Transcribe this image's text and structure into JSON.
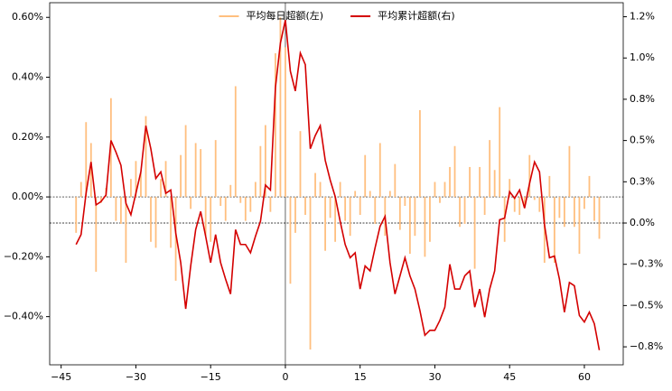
{
  "chart_data": {
    "type": "bar",
    "legend": "upper center",
    "xlim": [
      -47.3,
      67.8
    ],
    "ylim": [
      -0.561,
      0.649
    ],
    "y2lim": [
      -0.859,
      1.335
    ],
    "xticks": [
      {
        "value": -45,
        "label": "−45"
      },
      {
        "value": -30,
        "label": "−30"
      },
      {
        "value": -15,
        "label": "−15"
      },
      0,
      15,
      30,
      45,
      60
    ],
    "yticks": [
      {
        "value": -0.4,
        "label": "−0.40%"
      },
      {
        "value": -0.2,
        "label": "−0.20%"
      },
      {
        "value": 0,
        "label": "0.00%"
      },
      {
        "value": 0.2,
        "label": "0.20%"
      },
      {
        "value": 0.4,
        "label": "0.40%"
      },
      {
        "value": 0.6,
        "label": "0.60%"
      }
    ],
    "y2ticks": [
      {
        "value": -0.75,
        "label": "−0.8%"
      },
      {
        "value": -0.5,
        "label": "−0.5%"
      },
      {
        "value": -0.25,
        "label": "−0.3%"
      },
      {
        "value": 0,
        "label": "0.0%"
      },
      {
        "value": 0.25,
        "label": "0.3%"
      },
      {
        "value": 0.5,
        "label": "0.5%"
      },
      {
        "value": 0.75,
        "label": "0.8%"
      },
      {
        "value": 1.0,
        "label": "1.0%"
      },
      {
        "value": 1.25,
        "label": "1.2%"
      }
    ],
    "x": [
      -42,
      -41,
      -40,
      -39,
      -38,
      -37,
      -36,
      -35,
      -34,
      -33,
      -32,
      -31,
      -30,
      -29,
      -28,
      -27,
      -26,
      -25,
      -24,
      -23,
      -22,
      -21,
      -20,
      -19,
      -18,
      -17,
      -16,
      -15,
      -14,
      -13,
      -12,
      -11,
      -10,
      -9,
      -8,
      -7,
      -6,
      -5,
      -4,
      -3,
      -2,
      -1,
      0,
      1,
      2,
      3,
      4,
      5,
      6,
      7,
      8,
      9,
      10,
      11,
      12,
      13,
      14,
      15,
      16,
      17,
      18,
      19,
      20,
      21,
      22,
      23,
      24,
      25,
      26,
      27,
      28,
      29,
      30,
      31,
      32,
      33,
      34,
      35,
      36,
      37,
      38,
      39,
      40,
      41,
      42,
      43,
      44,
      45,
      46,
      47,
      48,
      49,
      50,
      51,
      52,
      53,
      54,
      55,
      56,
      57,
      58,
      59,
      60,
      61,
      62,
      63
    ],
    "series": [
      {
        "name": "平均每日超额(左)",
        "type": "bar",
        "color": "#ffbf7f",
        "values": [
          -0.12,
          0.05,
          0.25,
          0.18,
          -0.25,
          -0.02,
          0.03,
          0.33,
          -0.08,
          -0.09,
          -0.22,
          0.06,
          0.12,
          0.08,
          0.27,
          -0.15,
          -0.17,
          0.06,
          0.12,
          -0.17,
          -0.28,
          0.14,
          0.24,
          -0.04,
          0.18,
          0.16,
          -0.13,
          -0.15,
          0.19,
          -0.03,
          -0.08,
          0.04,
          0.37,
          -0.02,
          -0.08,
          -0.05,
          0.05,
          0.17,
          0.24,
          -0.05,
          0.48,
          0.6,
          0.5,
          -0.29,
          -0.12,
          0.22,
          -0.06,
          -0.51,
          0.08,
          0.05,
          -0.18,
          -0.07,
          -0.15,
          0.05,
          -0.08,
          -0.13,
          0.02,
          -0.06,
          0.14,
          0.02,
          -0.09,
          0.18,
          -0.13,
          0.02,
          0.11,
          -0.11,
          -0.03,
          -0.19,
          -0.13,
          0.29,
          -0.2,
          -0.15,
          0.05,
          -0.02,
          0.05,
          0.1,
          0.17,
          -0.1,
          -0.09,
          0.1,
          -0.24,
          0.1,
          -0.06,
          0.19,
          0.09,
          0.3,
          -0.15,
          0.06,
          -0.05,
          -0.06,
          -0.03,
          0.14,
          -0.01,
          -0.05,
          -0.22,
          0.07,
          -0.22,
          -0.07,
          -0.1,
          0.17,
          -0.1,
          -0.19,
          -0.04,
          0.07,
          -0.08,
          -0.14
        ]
      },
      {
        "name": "平均累计超额(右)",
        "type": "line",
        "axis": "y2",
        "color": "#d40000",
        "values": [
          -0.13,
          -0.07,
          0.18,
          0.37,
          0.11,
          0.13,
          0.17,
          0.5,
          0.43,
          0.35,
          0.12,
          0.05,
          0.18,
          0.31,
          0.59,
          0.45,
          0.27,
          0.31,
          0.18,
          0.2,
          -0.06,
          -0.24,
          -0.52,
          -0.26,
          -0.04,
          0.07,
          -0.08,
          -0.24,
          -0.07,
          -0.24,
          -0.34,
          -0.43,
          -0.04,
          -0.13,
          -0.13,
          -0.18,
          -0.08,
          0.01,
          0.23,
          0.2,
          0.82,
          1.09,
          1.23,
          0.92,
          0.8,
          1.03,
          0.96,
          0.45,
          0.53,
          0.59,
          0.38,
          0.26,
          0.16,
          0.01,
          -0.13,
          -0.21,
          -0.18,
          -0.4,
          -0.26,
          -0.29,
          -0.15,
          -0.02,
          0.04,
          -0.24,
          -0.43,
          -0.32,
          -0.21,
          -0.32,
          -0.4,
          -0.53,
          -0.68,
          -0.65,
          -0.65,
          -0.59,
          -0.51,
          -0.25,
          -0.4,
          -0.4,
          -0.32,
          -0.29,
          -0.51,
          -0.4,
          -0.57,
          -0.4,
          -0.29,
          0.02,
          0.03,
          0.19,
          0.15,
          0.2,
          0.09,
          0.24,
          0.37,
          0.31,
          -0.01,
          -0.21,
          -0.2,
          -0.34,
          -0.54,
          -0.36,
          -0.38,
          -0.56,
          -0.6,
          -0.54,
          -0.61,
          -0.77
        ]
      }
    ]
  }
}
